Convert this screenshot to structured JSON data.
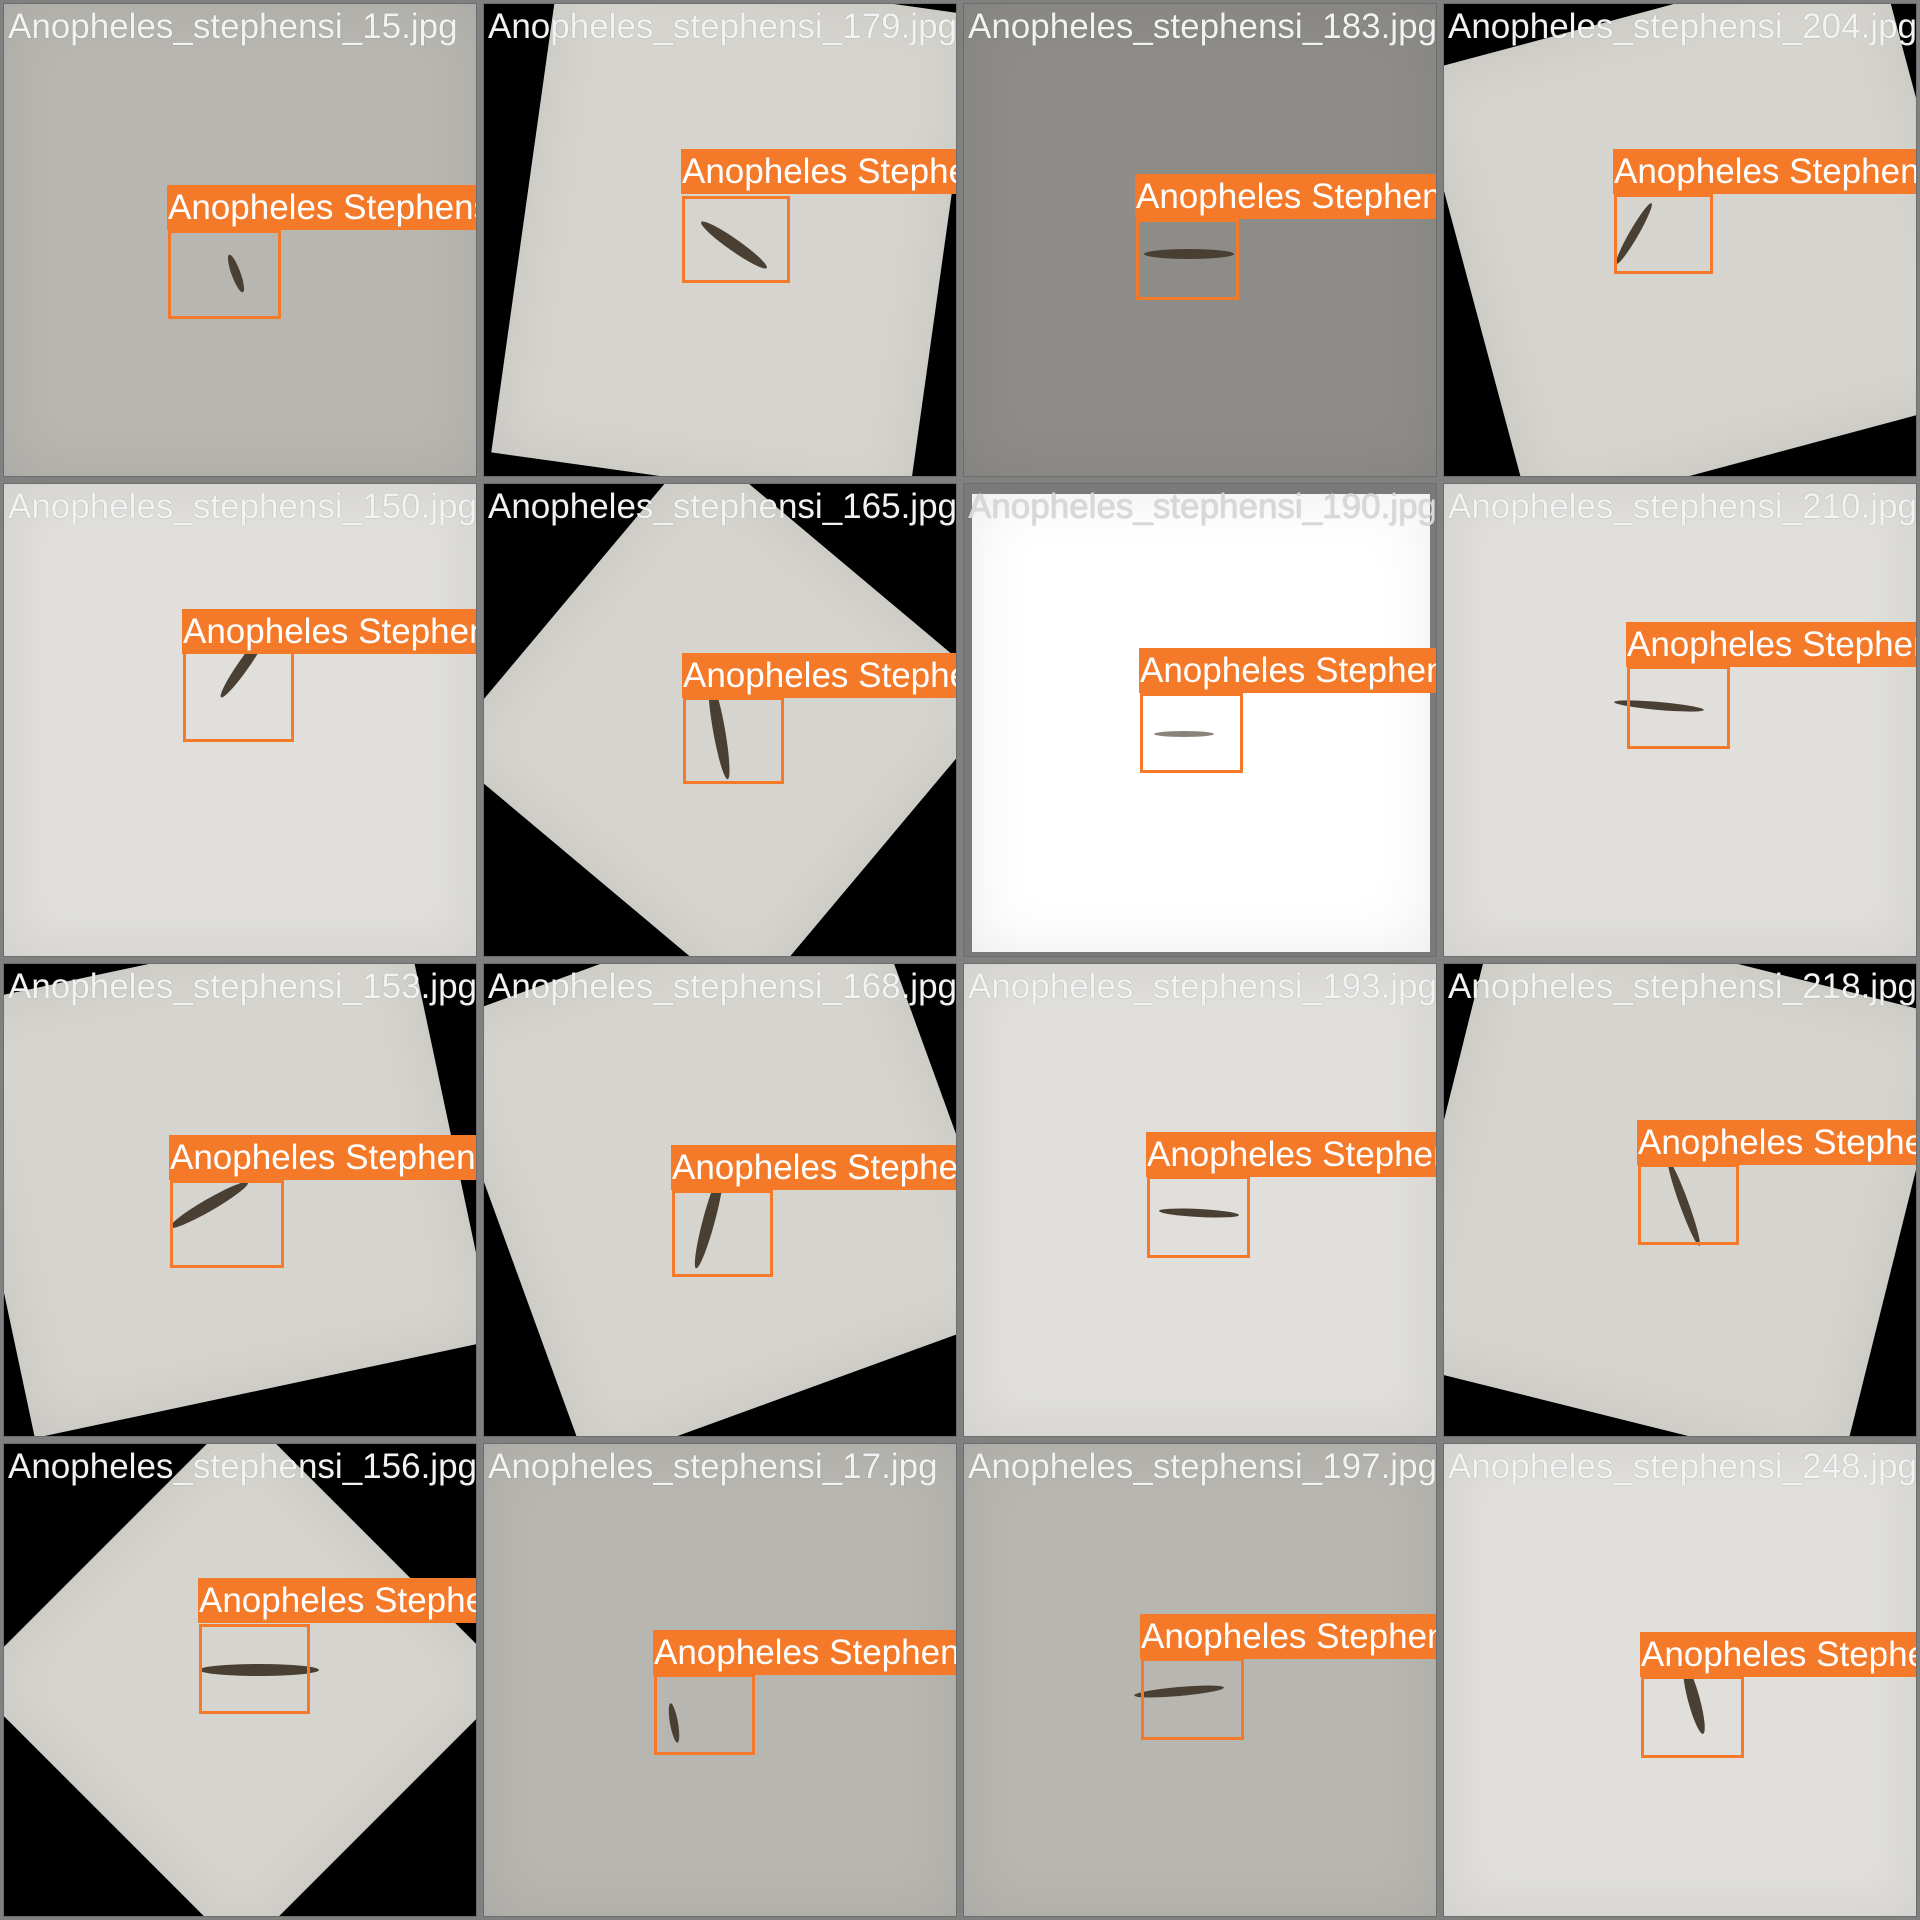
{
  "label_text": "Anopheles Stephensi",
  "box_color": "#f47a2a",
  "filenames": [
    "Anopheles_stephensi_15.jpg",
    "Anopheles_stephensi_179.jpg",
    "Anopheles_stephensi_183.jpg",
    "Anopheles_stephensi_204.jpg",
    "Anopheles_stephensi_150.jpg",
    "Anopheles_stephensi_165.jpg",
    "Anopheles_stephensi_190.jpg",
    "Anopheles_stephensi_210.jpg",
    "Anopheles_stephensi_153.jpg",
    "Anopheles_stephensi_168.jpg",
    "Anopheles_stephensi_193.jpg",
    "Anopheles_stephensi_218.jpg",
    "Anopheles_stephensi_156.jpg",
    "Anopheles_stephensi_17.jpg",
    "Anopheles_stephensi_197.jpg",
    "Anopheles_stephensi_248.jpg"
  ]
}
